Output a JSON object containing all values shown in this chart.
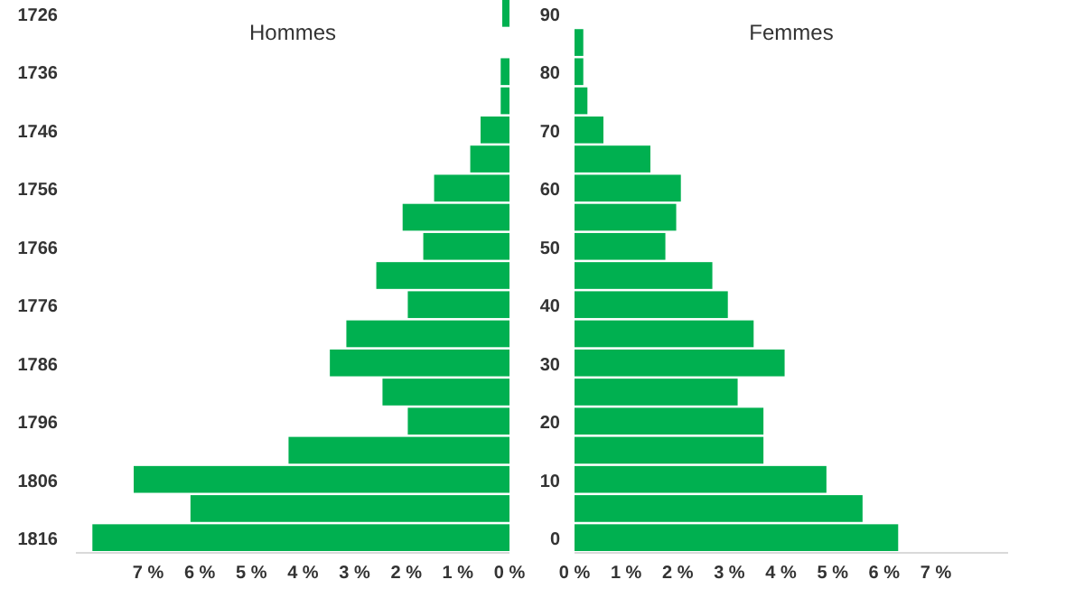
{
  "chart_data": [
    {
      "type": "bar",
      "orientation": "horizontal",
      "title": "Hommes",
      "categories": [
        "1726",
        null,
        "1736",
        null,
        "1746",
        null,
        "1756",
        null,
        "1766",
        null,
        "1776",
        null,
        "1786",
        null,
        "1796",
        null,
        "1806",
        null,
        "1816"
      ],
      "values": [
        0.14,
        0,
        0.17,
        0.17,
        0.56,
        0.76,
        1.46,
        2.07,
        1.67,
        2.58,
        1.97,
        3.16,
        3.48,
        2.46,
        1.97,
        4.28,
        7.28,
        6.18,
        8.08
      ],
      "color": "#00b050",
      "xlim": [
        8.4,
        0
      ],
      "xticks": [
        {
          "value": 7,
          "label": "7 %"
        },
        {
          "value": 6,
          "label": "6 %"
        },
        {
          "value": 5,
          "label": "5 %"
        },
        {
          "value": 4,
          "label": "4 %"
        },
        {
          "value": 3,
          "label": "3 %"
        },
        {
          "value": 2,
          "label": "2 %"
        },
        {
          "value": 1,
          "label": "1 %"
        },
        {
          "value": 0,
          "label": "0 %"
        }
      ]
    },
    {
      "type": "bar",
      "orientation": "horizontal",
      "title": "Femmes",
      "categories": [
        "90",
        null,
        "80",
        null,
        "70",
        null,
        "60",
        null,
        "50",
        null,
        "40",
        null,
        "30",
        null,
        "20",
        null,
        "10",
        null,
        "0"
      ],
      "values": [
        0,
        0.17,
        0.17,
        0.25,
        0.56,
        1.47,
        2.06,
        1.97,
        1.76,
        2.67,
        2.97,
        3.47,
        4.07,
        3.16,
        3.66,
        3.66,
        4.88,
        5.58,
        6.27
      ],
      "color": "#00b050",
      "xlim": [
        0,
        8.4
      ],
      "xticks": [
        {
          "value": 0,
          "label": "0 %"
        },
        {
          "value": 1,
          "label": "1 %"
        },
        {
          "value": 2,
          "label": "2 %"
        },
        {
          "value": 3,
          "label": "3 %"
        },
        {
          "value": 4,
          "label": "4 %"
        },
        {
          "value": 5,
          "label": "5 %"
        },
        {
          "value": 6,
          "label": "6 %"
        },
        {
          "value": 7,
          "label": "7 %"
        }
      ]
    }
  ]
}
